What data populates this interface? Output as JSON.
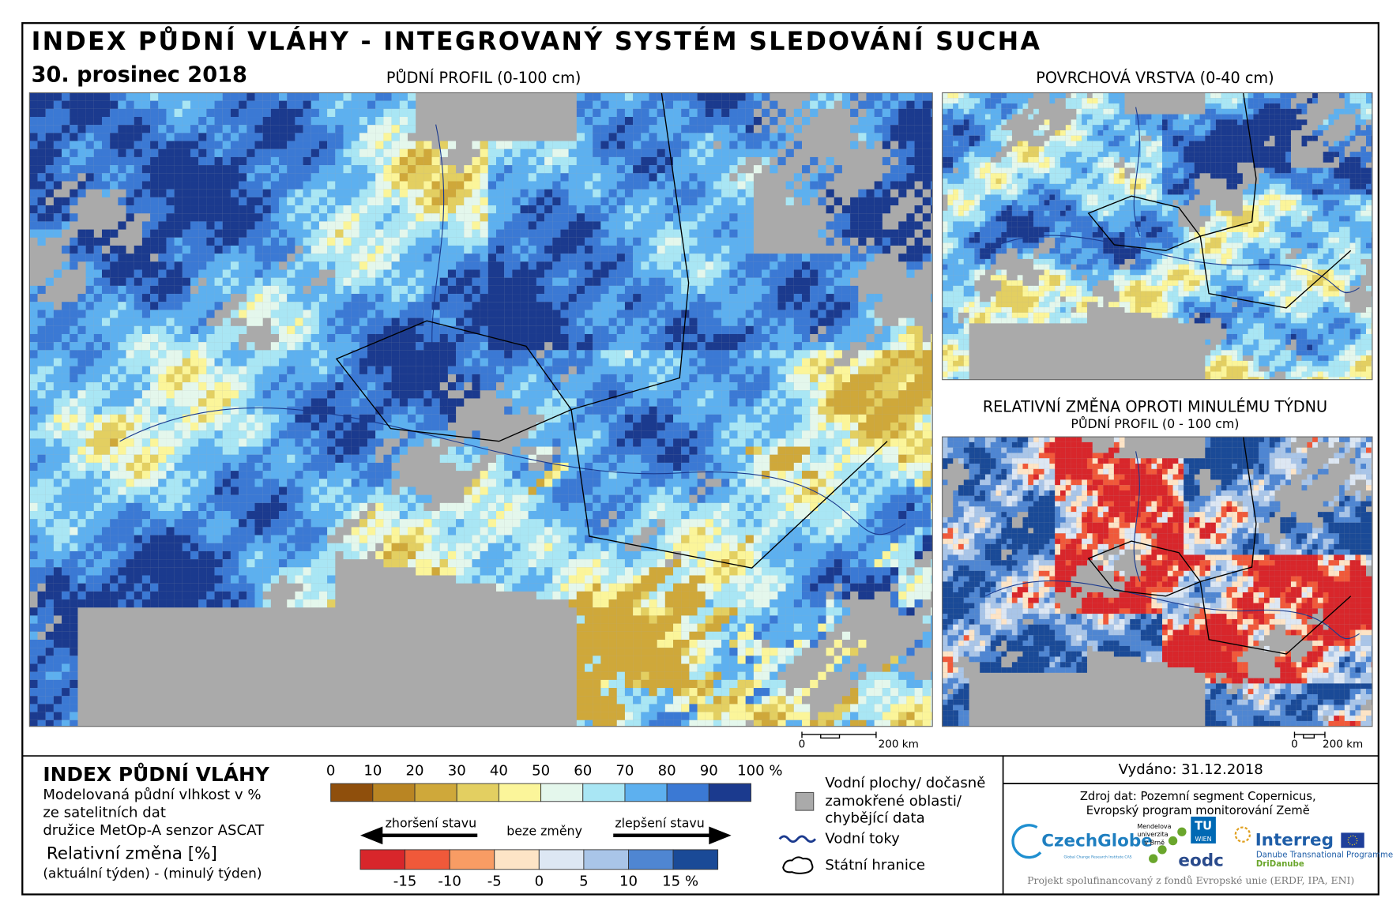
{
  "header": {
    "title": "INDEX PŮDNÍ VLÁHY - INTEGROVANÝ SYSTÉM SLEDOVÁNÍ SUCHA",
    "date": "30. prosinec 2018"
  },
  "maps": {
    "soil_profile": {
      "title": "PŮDNÍ PROFIL (0-100 cm)",
      "scale": [
        "0",
        "200 km"
      ]
    },
    "surface_layer": {
      "title": "POVRCHOVÁ VRSTVA (0-40 cm)"
    },
    "weekly_change": {
      "title": "RELATIVNÍ ZMĚNA OPROTI MINULÉMU TÝDNU",
      "subtitle": "PŮDNÍ PROFIL (0 - 100 cm)",
      "scale": [
        "0",
        "200 km"
      ]
    }
  },
  "legend": {
    "title": "INDEX PŮDNÍ VLÁHY",
    "description": [
      "Modelovaná půdní vlhkost v %",
      "ze satelitních dat",
      "družice MetOp-A senzor ASCAT"
    ],
    "moisture_ticks": [
      "0",
      "10",
      "20",
      "30",
      "40",
      "50",
      "60",
      "70",
      "80",
      "90",
      "100 %"
    ],
    "moisture_colors": [
      "#8f4f0c",
      "#b98523",
      "#cfa83a",
      "#e3cf61",
      "#fbf59a",
      "#e4f7ec",
      "#a9e6f4",
      "#5db0ef",
      "#3b79d4",
      "#1b3a8e"
    ],
    "change_title": "Relativní změna [%]",
    "change_subtitle": "(aktuální týden) - (minulý týden)",
    "worse": "zhoršení stavu",
    "no_change": "beze změny",
    "better": "zlepšení stavu",
    "change_ticks": [
      "-15",
      "-10",
      "-5",
      "0",
      "5",
      "10",
      "15 %"
    ],
    "change_colors": [
      "#d8262b",
      "#f0593a",
      "#f89c64",
      "#fde4c6",
      "#dde7f3",
      "#a9c5e8",
      "#4f86d2",
      "#1a4a97"
    ],
    "symbols": {
      "water": [
        "Vodní plochy/ dočasně",
        "zamokřené oblasti/",
        "chybějící data"
      ],
      "rivers": "Vodní toky",
      "borders": "Státní hranice"
    }
  },
  "info": {
    "issued": "Vydáno: 31.12.2018",
    "source": [
      "Zdroj dat: Pozemní segment Copernicus,",
      "Evropský program monitorování Země"
    ],
    "logos": {
      "czechglobe": "CzechGlobe",
      "czechglobe_sub": "Global Change Research Institute CAS",
      "mendelu": [
        "Mendelova",
        "univerzita",
        "v Brně"
      ],
      "tuwien": [
        "TU",
        "WIEN"
      ],
      "eodc": "eodc",
      "interreg": "Interreg",
      "interreg_sub": [
        "Danube Transnational Programme",
        "DriDanube"
      ]
    },
    "footer": "Projekt spolufinancovaný z fondů Evropské unie (ERDF, IPA, ENI)"
  }
}
